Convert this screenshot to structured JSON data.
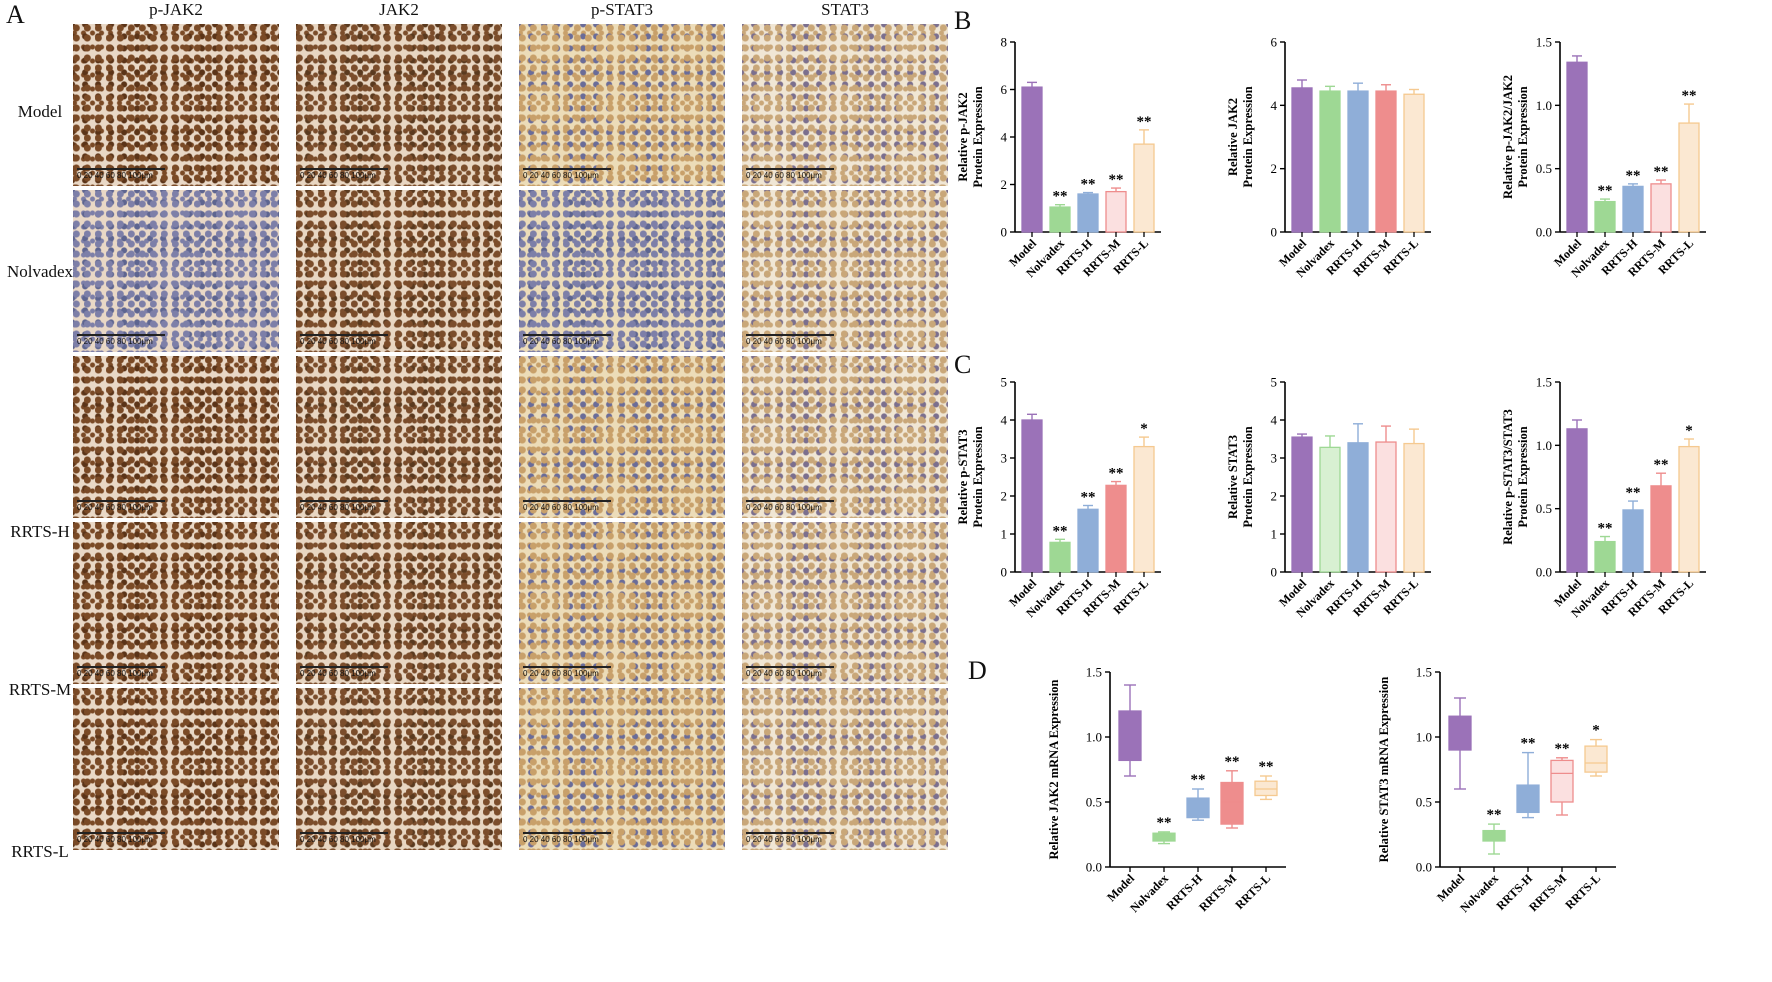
{
  "panels": {
    "A": "A",
    "B": "B",
    "C": "C",
    "D": "D"
  },
  "ihc": {
    "columns": [
      "p-JAK2",
      "JAK2",
      "p-STAT3",
      "STAT3"
    ],
    "rows": [
      "Model",
      "Nolvadex",
      "RRTS-H",
      "RRTS-M",
      "RRTS-L"
    ],
    "scale_label": "0  20  40  60  80  100μm"
  },
  "colors": {
    "Model": "#9b72b8",
    "Nolvadex": "#9ed894",
    "RRTS-H": "#8faed8",
    "RRTS-M": "#ee8d8d",
    "RRTS-L": "#f5c990",
    "Nolvadex_fill_light": "#d8f0d2",
    "RRTS-M_fill_light": "#fbe0e0",
    "RRTS-L_fill_light": "#fbe8d2"
  },
  "chart_data": [
    {
      "id": "B1",
      "type": "bar",
      "panel": "B",
      "categories": [
        "Model",
        "Nolvadex",
        "RRTS-H",
        "RRTS-M",
        "RRTS-L"
      ],
      "values": [
        6.1,
        1.05,
        1.6,
        1.7,
        3.7
      ],
      "errors": [
        0.2,
        0.1,
        0.06,
        0.15,
        0.6
      ],
      "significance": [
        "",
        "**",
        "**",
        "**",
        "**"
      ],
      "ylabel": "Relative p-JAK2\nProtein Expression",
      "ylim": [
        0,
        8
      ],
      "yticks": [
        0,
        2,
        4,
        6,
        8
      ],
      "fills": [
        "solid",
        "solid",
        "solid",
        "light",
        "light"
      ]
    },
    {
      "id": "B2",
      "type": "bar",
      "panel": "B",
      "categories": [
        "Model",
        "Nolvadex",
        "RRTS-H",
        "RRTS-M",
        "RRTS-L"
      ],
      "values": [
        4.55,
        4.45,
        4.45,
        4.45,
        4.35
      ],
      "errors": [
        0.25,
        0.15,
        0.25,
        0.2,
        0.15
      ],
      "significance": [
        "",
        "",
        "",
        "",
        ""
      ],
      "ylabel": "Relative JAK2\nProtein Expression",
      "ylim": [
        0,
        6
      ],
      "yticks": [
        0,
        2,
        4,
        6
      ],
      "fills": [
        "solid",
        "solid",
        "solid",
        "solid",
        "light"
      ]
    },
    {
      "id": "B3",
      "type": "bar",
      "panel": "B",
      "categories": [
        "Model",
        "Nolvadex",
        "RRTS-H",
        "RRTS-M",
        "RRTS-L"
      ],
      "values": [
        1.34,
        0.24,
        0.36,
        0.38,
        0.86
      ],
      "errors": [
        0.05,
        0.02,
        0.02,
        0.03,
        0.15
      ],
      "significance": [
        "",
        "**",
        "**",
        "**",
        "**"
      ],
      "ylabel": "Relative p-JAK2/JAK2\nProtein Expression",
      "ylim": [
        0,
        1.5
      ],
      "yticks": [
        0.0,
        0.5,
        1.0,
        1.5
      ],
      "fills": [
        "solid",
        "solid",
        "solid",
        "light",
        "light"
      ]
    },
    {
      "id": "C1",
      "type": "bar",
      "panel": "C",
      "categories": [
        "Model",
        "Nolvadex",
        "RRTS-H",
        "RRTS-M",
        "RRTS-L"
      ],
      "values": [
        4.0,
        0.78,
        1.65,
        2.28,
        3.3
      ],
      "errors": [
        0.15,
        0.08,
        0.1,
        0.1,
        0.25
      ],
      "significance": [
        "",
        "**",
        "**",
        "**",
        "*"
      ],
      "ylabel": "Relative p-STAT3\nProtein Expression",
      "ylim": [
        0,
        5
      ],
      "yticks": [
        0,
        1,
        2,
        3,
        4,
        5
      ],
      "fills": [
        "solid",
        "solid",
        "solid",
        "solid",
        "light"
      ]
    },
    {
      "id": "C2",
      "type": "bar",
      "panel": "C",
      "categories": [
        "Model",
        "Nolvadex",
        "RRTS-H",
        "RRTS-M",
        "RRTS-L"
      ],
      "values": [
        3.55,
        3.28,
        3.4,
        3.42,
        3.38
      ],
      "errors": [
        0.08,
        0.3,
        0.5,
        0.42,
        0.38
      ],
      "significance": [
        "",
        "",
        "",
        "",
        ""
      ],
      "ylabel": "Relative STAT3\nProtein Expression",
      "ylim": [
        0,
        5
      ],
      "yticks": [
        0,
        1,
        2,
        3,
        4,
        5
      ],
      "fills": [
        "solid",
        "light",
        "solid",
        "light",
        "light"
      ]
    },
    {
      "id": "C3",
      "type": "bar",
      "panel": "C",
      "categories": [
        "Model",
        "Nolvadex",
        "RRTS-H",
        "RRTS-M",
        "RRTS-L"
      ],
      "values": [
        1.13,
        0.24,
        0.49,
        0.68,
        0.99
      ],
      "errors": [
        0.07,
        0.04,
        0.07,
        0.1,
        0.06
      ],
      "significance": [
        "",
        "**",
        "**",
        "**",
        "*"
      ],
      "ylabel": "Relative p-STAT3/STAT3\nProtein Expression",
      "ylim": [
        0,
        1.5
      ],
      "yticks": [
        0.0,
        0.5,
        1.0,
        1.5
      ],
      "fills": [
        "solid",
        "solid",
        "solid",
        "solid",
        "light"
      ]
    },
    {
      "id": "D1",
      "type": "box",
      "panel": "D",
      "categories": [
        "Model",
        "Nolvadex",
        "RRTS-H",
        "RRTS-M",
        "RRTS-L"
      ],
      "boxes": [
        {
          "min": 0.7,
          "q1": 0.82,
          "median": 0.92,
          "q3": 1.2,
          "max": 1.4
        },
        {
          "min": 0.18,
          "q1": 0.2,
          "median": 0.24,
          "q3": 0.26,
          "max": 0.27
        },
        {
          "min": 0.36,
          "q1": 0.38,
          "median": 0.45,
          "q3": 0.53,
          "max": 0.6
        },
        {
          "min": 0.3,
          "q1": 0.33,
          "median": 0.5,
          "q3": 0.65,
          "max": 0.74
        },
        {
          "min": 0.52,
          "q1": 0.55,
          "median": 0.6,
          "q3": 0.66,
          "max": 0.7
        }
      ],
      "significance": [
        "",
        "**",
        "**",
        "**",
        "**"
      ],
      "ylabel": "Relative JAK2 mRNA Expression",
      "ylim": [
        0,
        1.5
      ],
      "yticks": [
        0.0,
        0.5,
        1.0,
        1.5
      ],
      "fills": [
        "solid",
        "solid",
        "solid",
        "solid",
        "light"
      ]
    },
    {
      "id": "D2",
      "type": "box",
      "panel": "D",
      "categories": [
        "Model",
        "Nolvadex",
        "RRTS-H",
        "RRTS-M",
        "RRTS-L"
      ],
      "boxes": [
        {
          "min": 0.6,
          "q1": 0.9,
          "median": 1.0,
          "q3": 1.16,
          "max": 1.3
        },
        {
          "min": 0.1,
          "q1": 0.2,
          "median": 0.25,
          "q3": 0.28,
          "max": 0.33
        },
        {
          "min": 0.38,
          "q1": 0.42,
          "median": 0.5,
          "q3": 0.63,
          "max": 0.88
        },
        {
          "min": 0.4,
          "q1": 0.5,
          "median": 0.72,
          "q3": 0.82,
          "max": 0.84
        },
        {
          "min": 0.7,
          "q1": 0.73,
          "median": 0.8,
          "q3": 0.93,
          "max": 0.98
        }
      ],
      "significance": [
        "",
        "**",
        "**",
        "**",
        "*"
      ],
      "ylabel": "Relative STAT3 mRNA Expression",
      "ylim": [
        0,
        1.5
      ],
      "yticks": [
        0.0,
        0.5,
        1.0,
        1.5
      ],
      "fills": [
        "solid",
        "solid",
        "solid",
        "light",
        "light"
      ]
    }
  ]
}
